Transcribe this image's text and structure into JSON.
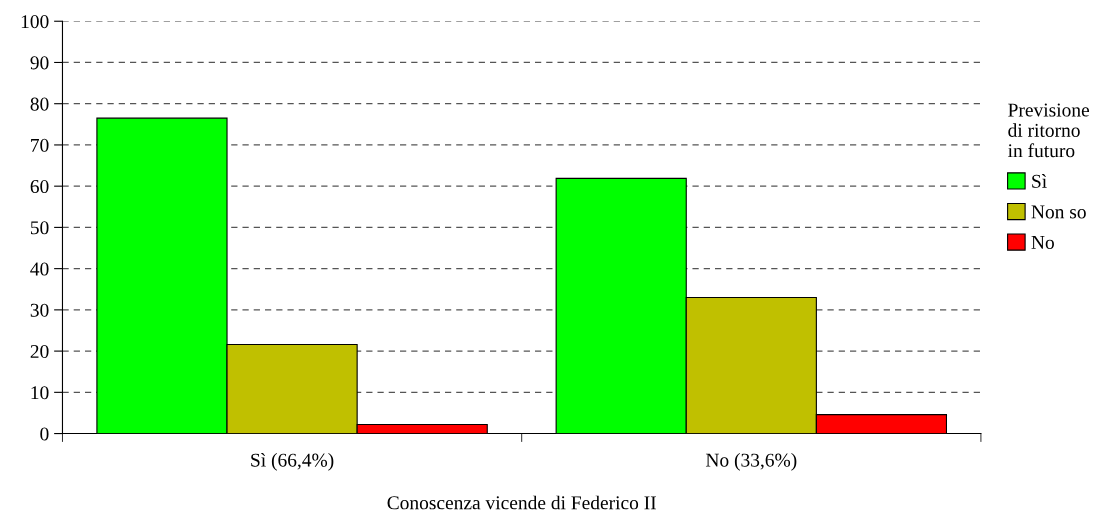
{
  "chart_data": {
    "type": "bar",
    "xlabel": "Conoscenza vicende di Federico II",
    "legend_title": "Previsione\ndi ritorno\nin futuro",
    "categories": [
      "Sì (66,4%)",
      "No (33,6%)"
    ],
    "series": [
      {
        "name": "Sì",
        "color": "#00ff00",
        "values": [
          76.5,
          61.9
        ]
      },
      {
        "name": "Non so",
        "color": "#c0c000",
        "values": [
          21.6,
          33.0
        ]
      },
      {
        "name": "No",
        "color": "#ff0000",
        "values": [
          2.2,
          4.6
        ]
      }
    ],
    "ylim": [
      0,
      100
    ],
    "yticks": [
      0,
      10,
      20,
      30,
      40,
      50,
      60,
      70,
      80,
      90,
      100
    ],
    "grid": "y",
    "legend": "right",
    "line_style": "dashed"
  }
}
